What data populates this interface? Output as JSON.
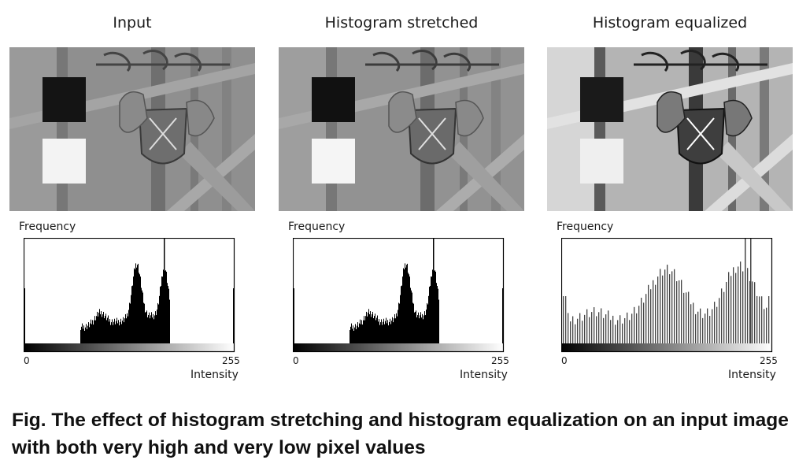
{
  "panels": [
    {
      "title": "Input",
      "frequency_label": "Frequency",
      "x_min": "0",
      "x_max": "255",
      "x_label": "Intensity"
    },
    {
      "title": "Histogram stretched",
      "frequency_label": "Frequency",
      "x_min": "0",
      "x_max": "255",
      "x_label": "Intensity"
    },
    {
      "title": "Histogram equalized",
      "frequency_label": "Frequency",
      "x_min": "0",
      "x_max": "255",
      "x_label": "Intensity"
    }
  ],
  "caption": "Fig.  The effect of histogram stretching and histogram equalization on an input image with both very high and very low pixel values"
}
